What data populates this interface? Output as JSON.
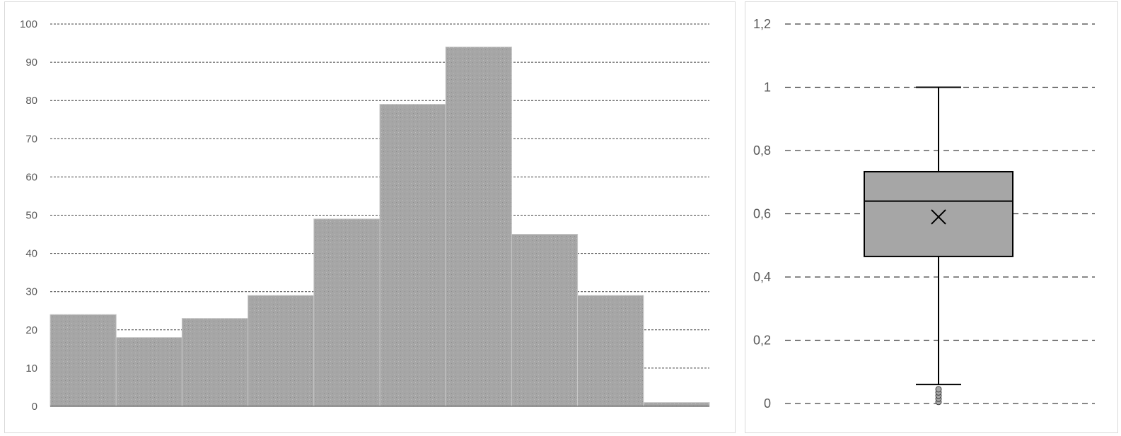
{
  "chart_data": [
    {
      "type": "bar",
      "title": "",
      "xlabel": "",
      "ylabel": "",
      "ylim": [
        0,
        100
      ],
      "yticks": [
        0,
        10,
        20,
        30,
        40,
        50,
        60,
        70,
        80,
        90,
        100
      ],
      "yticklabels": [
        "0",
        "10",
        "20",
        "30",
        "40",
        "50",
        "60",
        "70",
        "80",
        "90",
        "100"
      ],
      "grid": true,
      "values": [
        24,
        18,
        23,
        29,
        49,
        79,
        94,
        45,
        29,
        1
      ],
      "color": "#a6a6a6"
    },
    {
      "type": "box",
      "title": "",
      "xlabel": "",
      "ylabel": "",
      "ylim": [
        0,
        1.2
      ],
      "yticks": [
        0,
        0.2,
        0.4,
        0.6,
        0.8,
        1,
        1.2
      ],
      "yticklabels": [
        "0",
        "0,2",
        "0,4",
        "0,6",
        "0,8",
        "1",
        "1,2"
      ],
      "grid": true,
      "whisker_low": 0.06,
      "q1": 0.465,
      "median": 0.64,
      "q3": 0.733,
      "whisker_high": 1.0,
      "mean": 0.59,
      "outliers": [
        0.005,
        0.015,
        0.025,
        0.035,
        0.045
      ],
      "color": "#a6a6a6"
    }
  ]
}
